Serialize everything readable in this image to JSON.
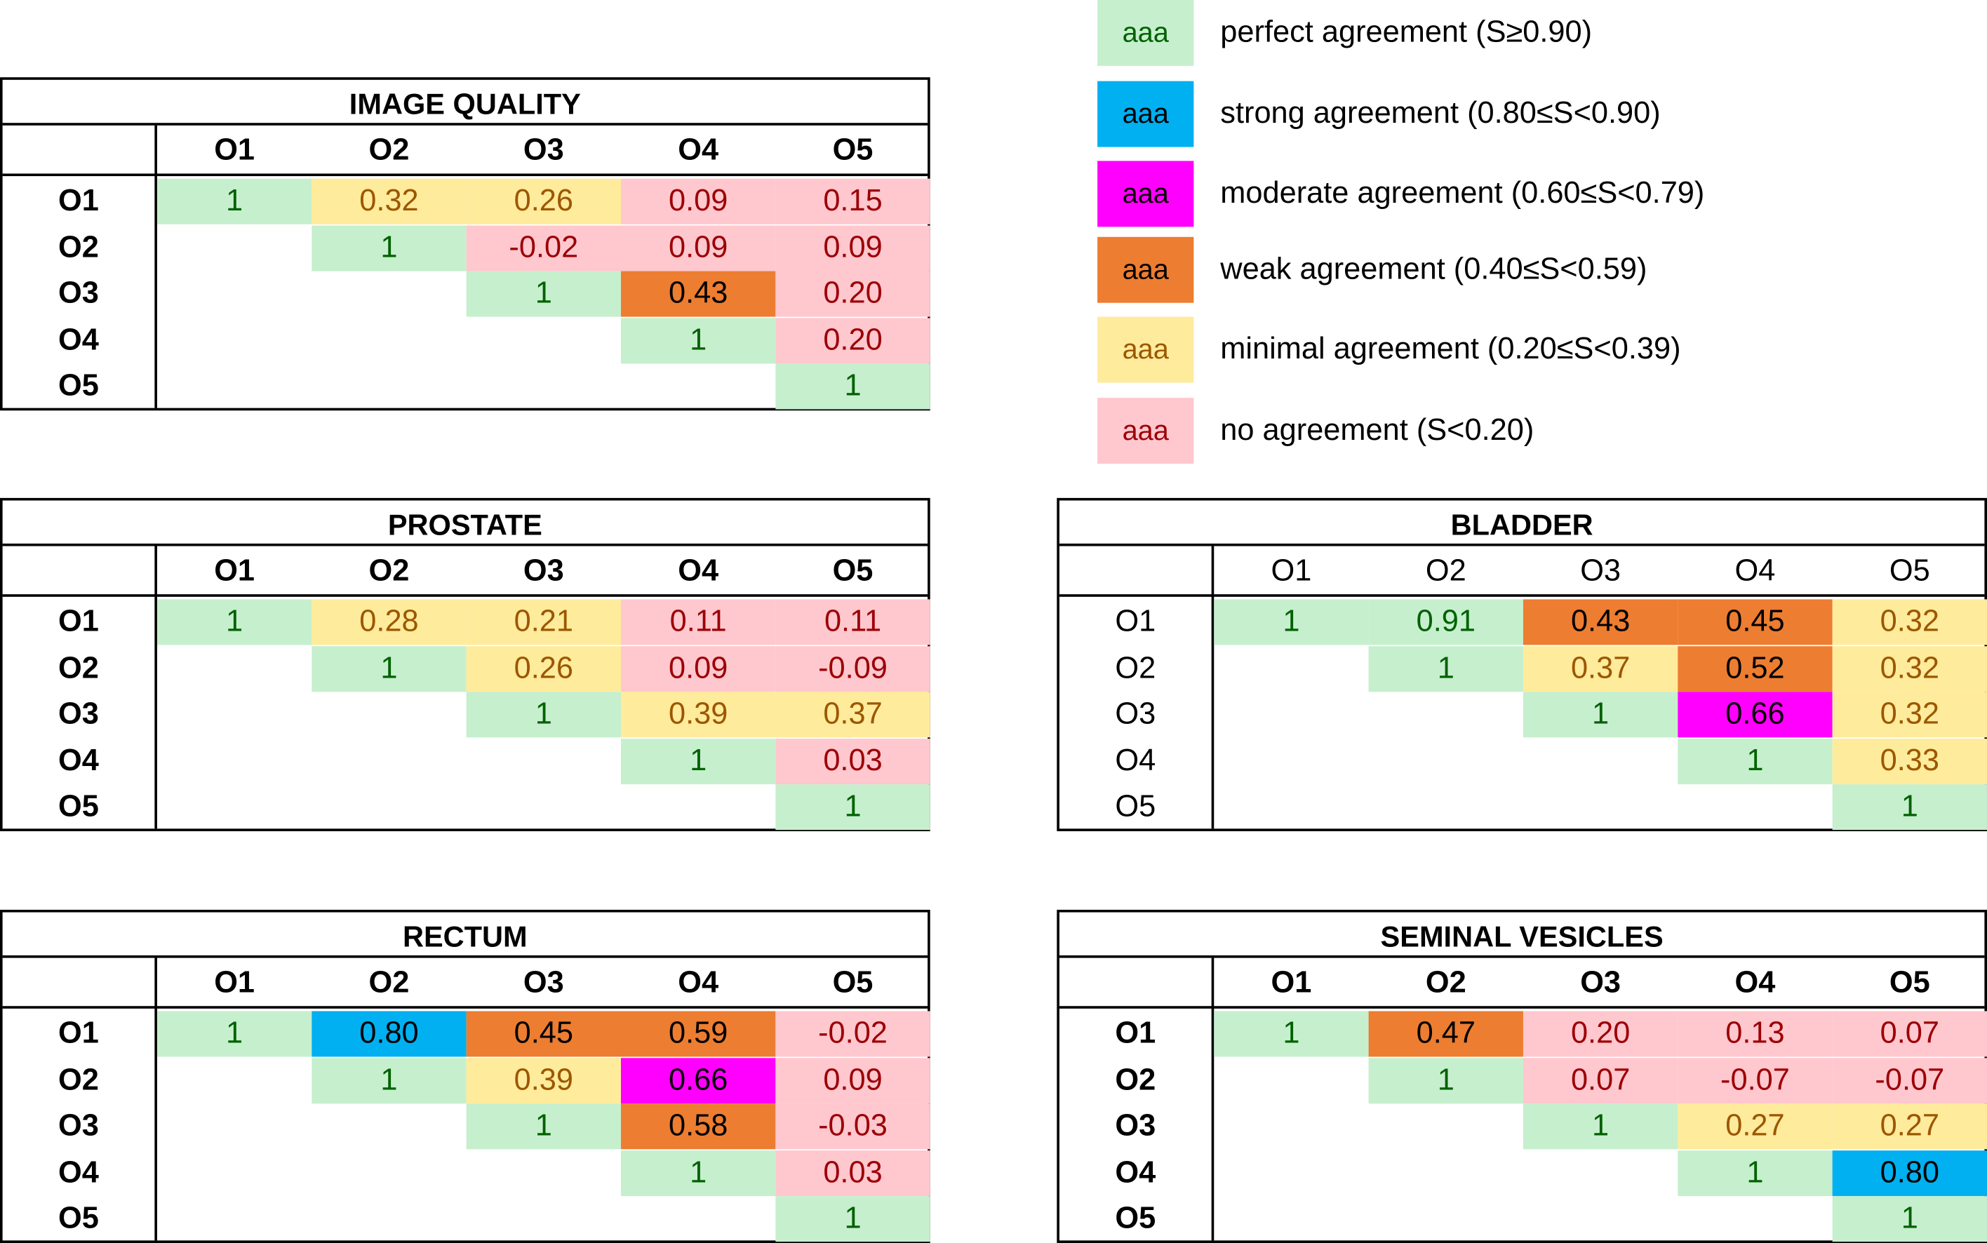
{
  "colors": {
    "perfect": {
      "bg": "#c6efce",
      "fg": "#006100"
    },
    "strong": {
      "bg": "#00b0f0",
      "fg": "#000000"
    },
    "moderate": {
      "bg": "#ff00ff",
      "fg": "#000000"
    },
    "weak": {
      "bg": "#ed7d31",
      "fg": "#000000"
    },
    "minimal": {
      "bg": "#ffeb9c",
      "fg": "#9c5700"
    },
    "none": {
      "bg": "#ffc7ce",
      "fg": "#9c0006"
    }
  },
  "legend": [
    {
      "swatch": "aaa",
      "label": "perfect agreement (S≥0.90)",
      "cls": "perfect"
    },
    {
      "swatch": "aaa",
      "label": "strong agreement (0.80≤S<0.90)",
      "cls": "strong"
    },
    {
      "swatch": "aaa",
      "label": "moderate agreement (0.60≤S<0.79)",
      "cls": "moderate"
    },
    {
      "swatch": "aaa",
      "label": "weak agreement (0.40≤S<0.59)",
      "cls": "weak"
    },
    {
      "swatch": "aaa",
      "label": "minimal agreement (0.20≤S<0.39)",
      "cls": "minimal"
    },
    {
      "swatch": "aaa",
      "label": "no agreement (S<0.20)",
      "cls": "none"
    }
  ],
  "tables": {
    "image_quality": {
      "title": "IMAGE QUALITY",
      "cols": [
        "O1",
        "O2",
        "O3",
        "O4",
        "O5"
      ],
      "rows": [
        "O1",
        "O2",
        "O3",
        "O4",
        "O5"
      ],
      "cells": [
        [
          {
            "v": "1",
            "c": "perfect"
          },
          {
            "v": "0.32",
            "c": "minimal"
          },
          {
            "v": "0.26",
            "c": "minimal"
          },
          {
            "v": "0.09",
            "c": "none"
          },
          {
            "v": "0.15",
            "c": "none"
          }
        ],
        [
          null,
          {
            "v": "1",
            "c": "perfect"
          },
          {
            "v": "-0.02",
            "c": "none"
          },
          {
            "v": "0.09",
            "c": "none"
          },
          {
            "v": "0.09",
            "c": "none"
          }
        ],
        [
          null,
          null,
          {
            "v": "1",
            "c": "perfect"
          },
          {
            "v": "0.43",
            "c": "weak"
          },
          {
            "v": "0.20",
            "c": "none"
          }
        ],
        [
          null,
          null,
          null,
          {
            "v": "1",
            "c": "perfect"
          },
          {
            "v": "0.20",
            "c": "none"
          }
        ],
        [
          null,
          null,
          null,
          null,
          {
            "v": "1",
            "c": "perfect"
          }
        ]
      ]
    },
    "prostate": {
      "title": "PROSTATE",
      "cols": [
        "O1",
        "O2",
        "O3",
        "O4",
        "O5"
      ],
      "rows": [
        "O1",
        "O2",
        "O3",
        "O4",
        "O5"
      ],
      "cells": [
        [
          {
            "v": "1",
            "c": "perfect"
          },
          {
            "v": "0.28",
            "c": "minimal"
          },
          {
            "v": "0.21",
            "c": "minimal"
          },
          {
            "v": "0.11",
            "c": "none"
          },
          {
            "v": "0.11",
            "c": "none"
          }
        ],
        [
          null,
          {
            "v": "1",
            "c": "perfect"
          },
          {
            "v": "0.26",
            "c": "minimal"
          },
          {
            "v": "0.09",
            "c": "none"
          },
          {
            "v": "-0.09",
            "c": "none"
          }
        ],
        [
          null,
          null,
          {
            "v": "1",
            "c": "perfect"
          },
          {
            "v": "0.39",
            "c": "minimal"
          },
          {
            "v": "0.37",
            "c": "minimal"
          }
        ],
        [
          null,
          null,
          null,
          {
            "v": "1",
            "c": "perfect"
          },
          {
            "v": "0.03",
            "c": "none"
          }
        ],
        [
          null,
          null,
          null,
          null,
          {
            "v": "1",
            "c": "perfect"
          }
        ]
      ]
    },
    "bladder": {
      "title": "BLADDER",
      "cols": [
        "O1",
        "O2",
        "O3",
        "O4",
        "O5"
      ],
      "rows": [
        "O1",
        "O2",
        "O3",
        "O4",
        "O5"
      ],
      "cells": [
        [
          {
            "v": "1",
            "c": "perfect"
          },
          {
            "v": "0.91",
            "c": "perfect"
          },
          {
            "v": "0.43",
            "c": "weak"
          },
          {
            "v": "0.45",
            "c": "weak"
          },
          {
            "v": "0.32",
            "c": "minimal"
          }
        ],
        [
          null,
          {
            "v": "1",
            "c": "perfect"
          },
          {
            "v": "0.37",
            "c": "minimal"
          },
          {
            "v": "0.52",
            "c": "weak"
          },
          {
            "v": "0.32",
            "c": "minimal"
          }
        ],
        [
          null,
          null,
          {
            "v": "1",
            "c": "perfect"
          },
          {
            "v": "0.66",
            "c": "moderate"
          },
          {
            "v": "0.32",
            "c": "minimal"
          }
        ],
        [
          null,
          null,
          null,
          {
            "v": "1",
            "c": "perfect"
          },
          {
            "v": "0.33",
            "c": "minimal"
          }
        ],
        [
          null,
          null,
          null,
          null,
          {
            "v": "1",
            "c": "perfect"
          }
        ]
      ]
    },
    "rectum": {
      "title": "RECTUM",
      "cols": [
        "O1",
        "O2",
        "O3",
        "O4",
        "O5"
      ],
      "rows": [
        "O1",
        "O2",
        "O3",
        "O4",
        "O5"
      ],
      "cells": [
        [
          {
            "v": "1",
            "c": "perfect"
          },
          {
            "v": "0.80",
            "c": "strong"
          },
          {
            "v": "0.45",
            "c": "weak"
          },
          {
            "v": "0.59",
            "c": "weak"
          },
          {
            "v": "-0.02",
            "c": "none"
          }
        ],
        [
          null,
          {
            "v": "1",
            "c": "perfect"
          },
          {
            "v": "0.39",
            "c": "minimal"
          },
          {
            "v": "0.66",
            "c": "moderate"
          },
          {
            "v": "0.09",
            "c": "none"
          }
        ],
        [
          null,
          null,
          {
            "v": "1",
            "c": "perfect"
          },
          {
            "v": "0.58",
            "c": "weak"
          },
          {
            "v": "-0.03",
            "c": "none"
          }
        ],
        [
          null,
          null,
          null,
          {
            "v": "1",
            "c": "perfect"
          },
          {
            "v": "0.03",
            "c": "none"
          }
        ],
        [
          null,
          null,
          null,
          null,
          {
            "v": "1",
            "c": "perfect"
          }
        ]
      ]
    },
    "seminal_vesicles": {
      "title": "SEMINAL VESICLES",
      "cols": [
        "O1",
        "O2",
        "O3",
        "O4",
        "O5"
      ],
      "rows": [
        "O1",
        "O2",
        "O3",
        "O4",
        "O5"
      ],
      "cells": [
        [
          {
            "v": "1",
            "c": "perfect"
          },
          {
            "v": "0.47",
            "c": "weak"
          },
          {
            "v": "0.20",
            "c": "none"
          },
          {
            "v": "0.13",
            "c": "none"
          },
          {
            "v": "0.07",
            "c": "none"
          }
        ],
        [
          null,
          {
            "v": "1",
            "c": "perfect"
          },
          {
            "v": "0.07",
            "c": "none"
          },
          {
            "v": "-0.07",
            "c": "none"
          },
          {
            "v": "-0.07",
            "c": "none"
          }
        ],
        [
          null,
          null,
          {
            "v": "1",
            "c": "perfect"
          },
          {
            "v": "0.27",
            "c": "minimal"
          },
          {
            "v": "0.27",
            "c": "minimal"
          }
        ],
        [
          null,
          null,
          null,
          {
            "v": "1",
            "c": "perfect"
          },
          {
            "v": "0.80",
            "c": "strong"
          }
        ],
        [
          null,
          null,
          null,
          null,
          {
            "v": "1",
            "c": "perfect"
          }
        ]
      ]
    }
  }
}
